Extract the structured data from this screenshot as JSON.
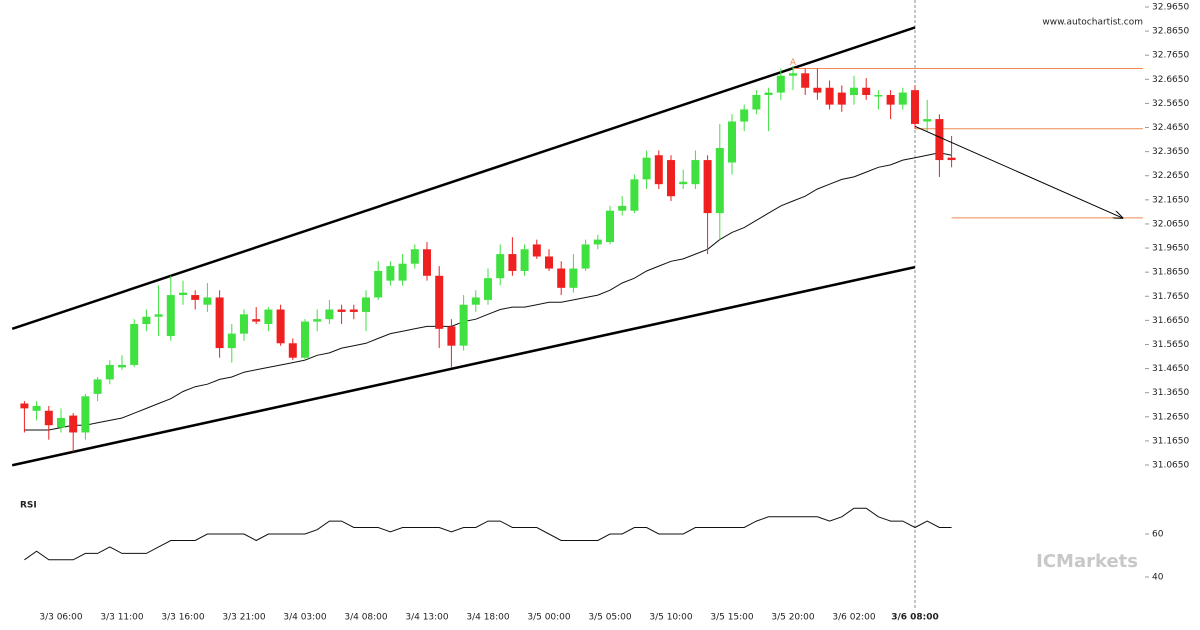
{
  "chart_data": [
    {
      "type": "candlestick",
      "categories": [
        null,
        null,
        null,
        "3/3 06:00",
        null,
        null,
        null,
        null,
        "3/3 11:00",
        null,
        null,
        null,
        null,
        "3/3 16:00",
        null,
        null,
        null,
        null,
        "3/3 21:00",
        null,
        null,
        null,
        null,
        "3/4 03:00",
        null,
        null,
        null,
        null,
        "3/4 08:00",
        null,
        null,
        null,
        null,
        "3/4 13:00",
        null,
        null,
        null,
        null,
        "3/4 18:00",
        null,
        null,
        null,
        null,
        "3/5 00:00",
        null,
        null,
        null,
        null,
        "3/5 05:00",
        null,
        null,
        null,
        null,
        "3/5 10:00",
        null,
        null,
        null,
        null,
        "3/5 15:00",
        null,
        null,
        null,
        null,
        "3/5 20:00",
        null,
        null,
        null,
        null,
        "3/6 02:00",
        null,
        null,
        null,
        null,
        "3/6 08:00",
        null,
        null,
        null
      ],
      "open": [
        31.32,
        31.29,
        31.29,
        31.22,
        31.27,
        31.2,
        31.36,
        31.42,
        31.47,
        31.48,
        31.65,
        31.68,
        31.6,
        31.77,
        31.77,
        31.73,
        31.76,
        31.55,
        31.61,
        31.67,
        31.65,
        31.71,
        31.57,
        31.51,
        31.66,
        31.67,
        31.71,
        31.71,
        31.7,
        31.76,
        31.83,
        31.83,
        31.9,
        31.96,
        31.85,
        31.64,
        31.56,
        31.73,
        31.75,
        31.84,
        31.94,
        31.87,
        31.98,
        31.93,
        31.88,
        31.8,
        31.88,
        31.98,
        31.99,
        32.12,
        32.12,
        32.25,
        32.35,
        32.33,
        32.23,
        32.23,
        32.33,
        32.11,
        32.32,
        32.49,
        32.54,
        32.6,
        32.61,
        32.68,
        32.69,
        32.63,
        32.63,
        32.61,
        32.6,
        32.63,
        32.6,
        32.6,
        32.56,
        32.62,
        32.49,
        32.5,
        32.34
      ],
      "high": [
        31.33,
        31.33,
        31.31,
        31.3,
        31.28,
        31.36,
        31.43,
        31.5,
        31.52,
        31.67,
        31.71,
        31.81,
        31.85,
        31.83,
        31.79,
        31.82,
        31.79,
        31.65,
        31.71,
        31.72,
        31.72,
        31.73,
        31.59,
        31.67,
        31.71,
        31.75,
        31.73,
        31.73,
        31.79,
        31.91,
        31.91,
        31.94,
        31.98,
        31.99,
        31.89,
        31.67,
        31.77,
        31.79,
        31.88,
        31.98,
        32.01,
        31.98,
        32.0,
        31.96,
        31.91,
        31.94,
        32.0,
        32.02,
        32.14,
        32.18,
        32.27,
        32.37,
        32.37,
        32.35,
        32.29,
        32.37,
        32.35,
        32.48,
        32.52,
        32.56,
        32.62,
        32.63,
        32.71,
        32.72,
        32.71,
        32.71,
        32.66,
        32.64,
        32.68,
        32.67,
        32.62,
        32.62,
        32.63,
        32.64,
        32.58,
        32.52,
        32.43
      ],
      "low": [
        31.2,
        31.25,
        31.17,
        31.2,
        31.12,
        31.17,
        31.33,
        31.4,
        31.46,
        31.47,
        31.62,
        31.6,
        31.58,
        31.73,
        31.71,
        31.7,
        31.51,
        31.49,
        31.58,
        31.65,
        31.62,
        31.56,
        31.5,
        31.5,
        31.62,
        31.65,
        31.65,
        31.67,
        31.62,
        31.75,
        31.81,
        31.81,
        31.88,
        31.83,
        31.55,
        31.47,
        31.54,
        31.7,
        31.73,
        31.81,
        31.85,
        31.85,
        31.92,
        31.87,
        31.77,
        31.78,
        31.87,
        31.96,
        31.98,
        32.1,
        32.11,
        32.21,
        32.21,
        32.16,
        32.21,
        32.21,
        31.94,
        32.0,
        32.27,
        32.45,
        32.52,
        32.45,
        32.58,
        32.62,
        32.6,
        32.58,
        32.54,
        32.53,
        32.56,
        32.58,
        32.54,
        32.5,
        32.54,
        32.46,
        32.45,
        32.26,
        32.3
      ],
      "close": [
        31.3,
        31.31,
        31.23,
        31.26,
        31.2,
        31.35,
        31.42,
        31.48,
        31.48,
        31.65,
        31.68,
        31.69,
        31.77,
        31.78,
        31.75,
        31.76,
        31.55,
        31.61,
        31.69,
        31.66,
        31.71,
        31.57,
        31.51,
        31.66,
        31.67,
        31.71,
        31.7,
        31.7,
        31.76,
        31.87,
        31.89,
        31.9,
        31.96,
        31.85,
        31.63,
        31.56,
        31.73,
        31.76,
        31.84,
        31.94,
        31.87,
        31.96,
        31.93,
        31.88,
        31.8,
        31.88,
        31.98,
        32.0,
        32.12,
        32.14,
        32.25,
        32.34,
        32.23,
        32.18,
        32.24,
        32.33,
        32.11,
        32.38,
        32.49,
        32.54,
        32.6,
        32.61,
        32.68,
        32.69,
        32.63,
        32.61,
        32.56,
        32.56,
        32.63,
        32.6,
        32.6,
        32.56,
        32.61,
        32.48,
        32.5,
        32.33,
        32.33
      ],
      "up_color": "#3fe03f",
      "down_color": "#ee2020",
      "ma": {
        "color": "#111111",
        "values": [
          31.21,
          31.21,
          31.21,
          31.22,
          31.23,
          31.23,
          31.24,
          31.25,
          31.26,
          31.28,
          31.3,
          31.32,
          31.34,
          31.37,
          31.39,
          31.4,
          31.42,
          31.43,
          31.45,
          31.46,
          31.47,
          31.48,
          31.49,
          31.5,
          31.52,
          31.53,
          31.55,
          31.56,
          31.57,
          31.59,
          31.61,
          31.62,
          31.63,
          31.64,
          31.64,
          31.64,
          31.66,
          31.67,
          31.69,
          31.71,
          31.72,
          31.72,
          31.73,
          31.74,
          31.74,
          31.75,
          31.76,
          31.77,
          31.79,
          31.82,
          31.84,
          31.87,
          31.89,
          31.91,
          31.92,
          31.94,
          31.96,
          32.0,
          32.03,
          32.05,
          32.08,
          32.11,
          32.14,
          32.16,
          32.18,
          32.21,
          32.23,
          32.25,
          32.26,
          32.28,
          32.3,
          32.31,
          32.33,
          32.34,
          32.35,
          32.36,
          32.35
        ]
      },
      "channel": [
        {
          "x": [
            -1,
            73
          ],
          "values": [
            31.63,
            32.88
          ]
        },
        {
          "x": [
            -1,
            73
          ],
          "values": [
            31.064,
            31.886
          ]
        }
      ],
      "channel_color": "#000000",
      "levels": [
        {
          "value": 32.71,
          "from": 63
        },
        {
          "value": 32.46,
          "from": 73
        },
        {
          "value": 32.09,
          "from": 76
        }
      ],
      "level_color": "#f08a50",
      "forecast": {
        "x": [
          73,
          90
        ],
        "values": [
          32.47,
          32.09
        ]
      },
      "pattern": {
        "label": "A",
        "x": 63,
        "value": 32.735
      },
      "marker_x": 73,
      "watermark": "www.autochartist.com",
      "logo": "ICMarkets",
      "ylim": [
        31.065,
        32.965
      ],
      "yticks": [
        {
          "value": 32.965,
          "label": "32.9650"
        },
        {
          "value": 32.865,
          "label": "32.8650"
        },
        {
          "value": 32.765,
          "label": "32.7650"
        },
        {
          "value": 32.665,
          "label": "32.6650"
        },
        {
          "value": 32.565,
          "label": "32.5650"
        },
        {
          "value": 32.465,
          "label": "32.4650"
        },
        {
          "value": 32.365,
          "label": "32.3650"
        },
        {
          "value": 32.265,
          "label": "32.2650"
        },
        {
          "value": 32.165,
          "label": "32.1650"
        },
        {
          "value": 32.065,
          "label": "32.0650"
        },
        {
          "value": 31.965,
          "label": "31.9650"
        },
        {
          "value": 31.865,
          "label": "31.8650"
        },
        {
          "value": 31.765,
          "label": "31.7650"
        },
        {
          "value": 31.665,
          "label": "31.6650"
        },
        {
          "value": 31.565,
          "label": "31.5650"
        },
        {
          "value": 31.465,
          "label": "31.4650"
        },
        {
          "value": 31.365,
          "label": "31.3650"
        },
        {
          "value": 31.265,
          "label": "31.2650"
        },
        {
          "value": 31.165,
          "label": "31.1650"
        },
        {
          "value": 31.065,
          "label": "31.0650"
        }
      ]
    },
    {
      "type": "line",
      "title": "RSI",
      "color": "#111111",
      "values": [
        48,
        52,
        48,
        48,
        48,
        51,
        51,
        54,
        51,
        51,
        51,
        54,
        57,
        57,
        57,
        60,
        60,
        60,
        60,
        57,
        60,
        60,
        60,
        60,
        62,
        66,
        66,
        63,
        63,
        63,
        61,
        63,
        63,
        63,
        63,
        61,
        63,
        63,
        66,
        66,
        63,
        63,
        63,
        60,
        57,
        57,
        57,
        57,
        60,
        60,
        63,
        63,
        60,
        60,
        60,
        63,
        63,
        63,
        63,
        63,
        66,
        68,
        68,
        68,
        68,
        68,
        66,
        68,
        72,
        72,
        68,
        66,
        66,
        63,
        66,
        63,
        63
      ],
      "ylim": [
        20,
        80
      ],
      "yticks": [
        40,
        60
      ]
    }
  ]
}
